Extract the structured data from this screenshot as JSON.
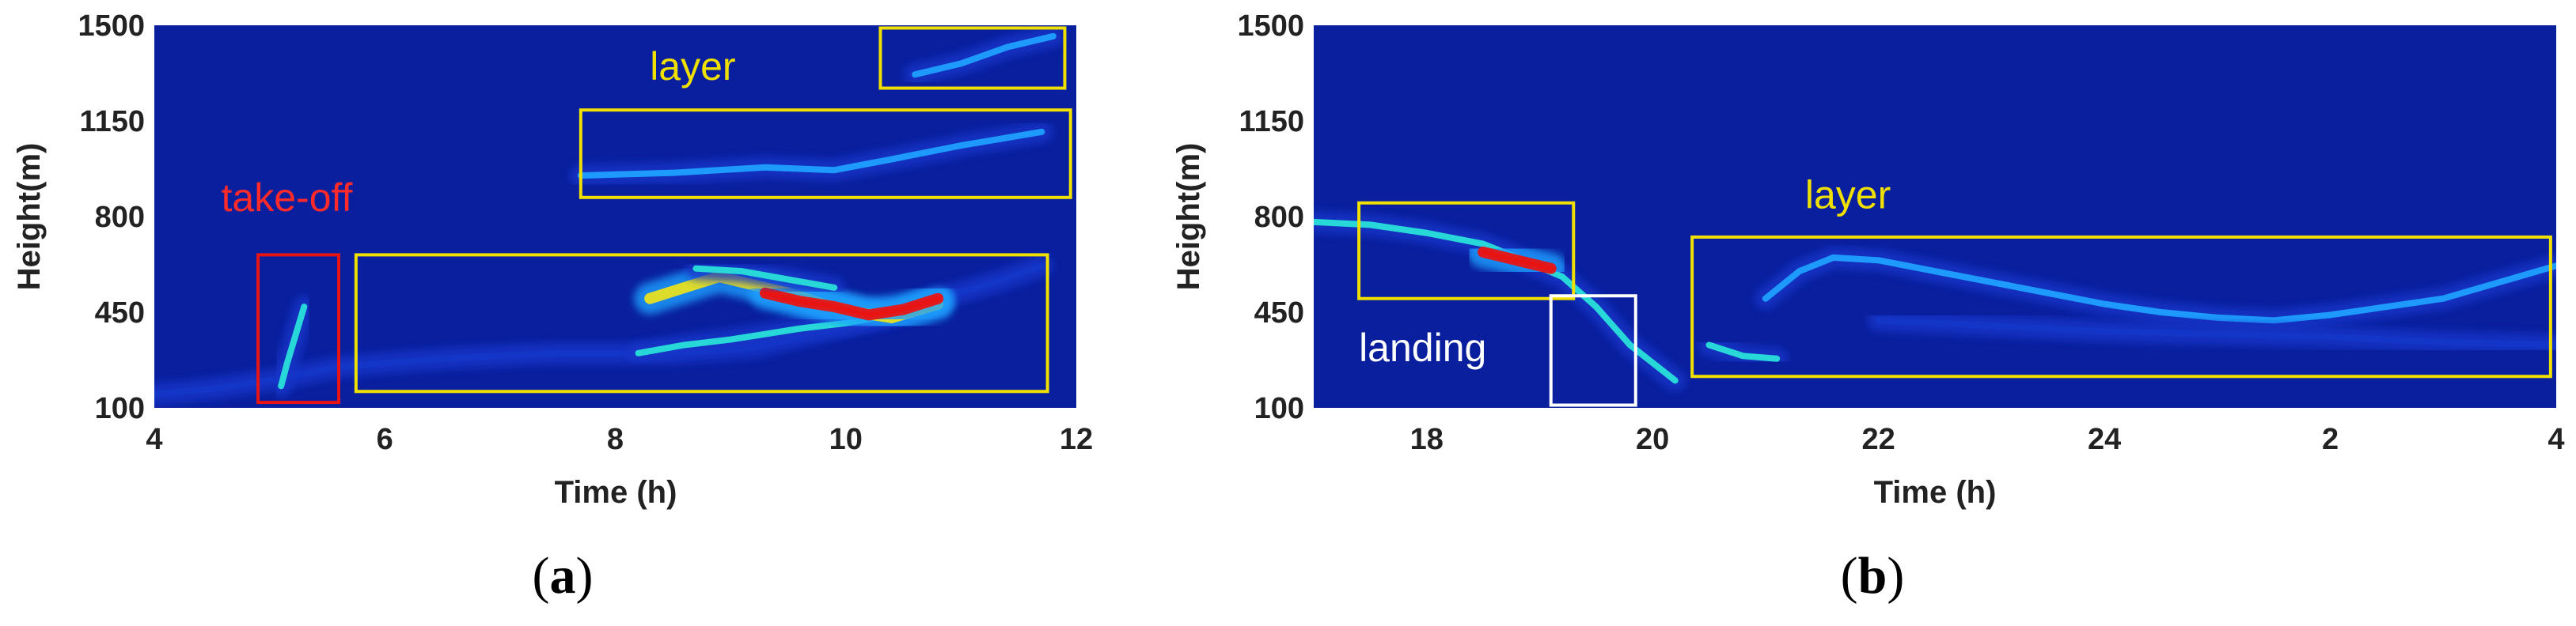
{
  "colors": {
    "background": "#0a1f9e",
    "low": "#1336c8",
    "mid": "#1fa0ff",
    "high_mid": "#29e0d8",
    "high": "#e8e020",
    "peak": "#e81414",
    "box_layer": "#f0e000",
    "box_takeoff": "#e81414",
    "box_landing": "#ffffff",
    "text_takeoff": "#ff2a2a",
    "text_layer": "#f0e000",
    "text_landing": "#ffffff"
  },
  "chart_data": [
    {
      "panel_label": "a",
      "type": "heatmap",
      "xlabel": "Time (h)",
      "ylabel": "Height(m)",
      "x_ticks": [
        4,
        6,
        8,
        10,
        12
      ],
      "x_range": [
        4,
        12
      ],
      "y_ticks": [
        100,
        450,
        800,
        1150,
        1500
      ],
      "y_range": [
        100,
        1500
      ],
      "annotations": [
        {
          "label": "take-off",
          "kind": "takeoff",
          "x_range": [
            4.9,
            5.6
          ],
          "y_range": [
            120,
            660
          ],
          "label_pos": [
            5.15,
            820
          ]
        },
        {
          "label": "layer",
          "kind": "layer",
          "x_range": [
            5.75,
            11.75
          ],
          "y_range": [
            160,
            660
          ],
          "label_pos": null
        },
        {
          "label": "layer",
          "kind": "layer",
          "x_range": [
            7.7,
            11.95
          ],
          "y_range": [
            870,
            1190
          ],
          "label_pos": [
            8.3,
            1300
          ]
        },
        {
          "label": "",
          "kind": "layer",
          "x_range": [
            10.3,
            11.9
          ],
          "y_range": [
            1270,
            1490
          ],
          "label_pos": null
        }
      ],
      "echo_traces": [
        {
          "points": [
            [
              4.0,
              150
            ],
            [
              4.5,
              170
            ],
            [
              5.0,
              200
            ],
            [
              5.6,
              250
            ],
            [
              6.5,
              280
            ],
            [
              7.5,
              300
            ],
            [
              8.5,
              300
            ],
            [
              9.2,
              320
            ],
            [
              9.8,
              380
            ],
            [
              10.3,
              430
            ],
            [
              10.8,
              500
            ],
            [
              11.3,
              560
            ],
            [
              11.7,
              620
            ]
          ],
          "intensity": 0.25
        },
        {
          "points": [
            [
              5.1,
              180
            ],
            [
              5.15,
              260
            ],
            [
              5.2,
              330
            ],
            [
              5.25,
              400
            ],
            [
              5.3,
              470
            ]
          ],
          "intensity": 0.5
        },
        {
          "points": [
            [
              8.2,
              300
            ],
            [
              8.6,
              330
            ],
            [
              9.0,
              350
            ],
            [
              9.3,
              370
            ],
            [
              9.6,
              390
            ],
            [
              10.0,
              410
            ],
            [
              10.4,
              440
            ],
            [
              10.8,
              480
            ]
          ],
          "intensity": 0.5
        },
        {
          "points": [
            [
              8.3,
              500
            ],
            [
              8.6,
              540
            ],
            [
              8.9,
              580
            ],
            [
              9.2,
              550
            ],
            [
              9.5,
              520
            ],
            [
              9.8,
              480
            ],
            [
              10.1,
              450
            ],
            [
              10.4,
              430
            ],
            [
              10.8,
              480
            ]
          ],
          "intensity": 0.75
        },
        {
          "points": [
            [
              9.3,
              520
            ],
            [
              9.6,
              490
            ],
            [
              9.9,
              470
            ],
            [
              10.2,
              440
            ],
            [
              10.5,
              460
            ],
            [
              10.8,
              500
            ]
          ],
          "intensity": 1.0
        },
        {
          "points": [
            [
              8.7,
              610
            ],
            [
              9.1,
              600
            ],
            [
              9.5,
              570
            ],
            [
              9.9,
              540
            ]
          ],
          "intensity": 0.45
        },
        {
          "points": [
            [
              7.7,
              950
            ],
            [
              8.5,
              960
            ],
            [
              9.3,
              980
            ],
            [
              9.9,
              970
            ],
            [
              10.4,
              1010
            ],
            [
              11.0,
              1060
            ],
            [
              11.7,
              1110
            ]
          ],
          "intensity": 0.35
        },
        {
          "points": [
            [
              10.6,
              1320
            ],
            [
              11.0,
              1360
            ],
            [
              11.4,
              1420
            ],
            [
              11.8,
              1460
            ]
          ],
          "intensity": 0.4
        }
      ]
    },
    {
      "panel_label": "b",
      "type": "heatmap",
      "xlabel": "Time (h)",
      "ylabel": "Height(m)",
      "x_ticks": [
        18,
        20,
        22,
        24,
        2,
        4
      ],
      "x_range": [
        17,
        28
      ],
      "y_ticks": [
        100,
        450,
        800,
        1150,
        1500
      ],
      "y_range": [
        100,
        1500
      ],
      "annotations": [
        {
          "label": "",
          "kind": "layer",
          "x_range": [
            17.4,
            19.3
          ],
          "y_range": [
            500,
            850
          ],
          "label_pos": null
        },
        {
          "label": "landing",
          "kind": "landing",
          "x_range": [
            19.1,
            19.85
          ],
          "y_range": [
            110,
            510
          ],
          "label_pos": [
            17.4,
            270
          ]
        },
        {
          "label": "layer",
          "kind": "layer",
          "x_range": [
            20.35,
            27.95
          ],
          "y_range": [
            215,
            725
          ],
          "label_pos": [
            21.35,
            830
          ]
        }
      ],
      "echo_traces": [
        {
          "points": [
            [
              17.0,
              780
            ],
            [
              17.5,
              770
            ],
            [
              18.0,
              740
            ],
            [
              18.5,
              700
            ],
            [
              18.8,
              650
            ],
            [
              19.2,
              580
            ],
            [
              19.5,
              470
            ],
            [
              19.8,
              330
            ],
            [
              20.2,
              200
            ]
          ],
          "intensity": 0.5
        },
        {
          "points": [
            [
              18.5,
              670
            ],
            [
              18.7,
              650
            ],
            [
              18.9,
              630
            ],
            [
              19.1,
              610
            ]
          ],
          "intensity": 1.0
        },
        {
          "points": [
            [
              20.5,
              330
            ],
            [
              20.8,
              290
            ],
            [
              21.1,
              280
            ]
          ],
          "intensity": 0.55
        },
        {
          "points": [
            [
              21.0,
              500
            ],
            [
              21.3,
              600
            ],
            [
              21.6,
              650
            ],
            [
              22.0,
              640
            ],
            [
              22.5,
              600
            ],
            [
              23.0,
              560
            ],
            [
              23.5,
              520
            ],
            [
              24.0,
              480
            ],
            [
              24.5,
              450
            ],
            [
              25.0,
              430
            ],
            [
              25.5,
              420
            ],
            [
              26.0,
              440
            ],
            [
              26.5,
              470
            ],
            [
              27.0,
              500
            ],
            [
              27.5,
              560
            ],
            [
              28.0,
              620
            ]
          ],
          "intensity": 0.3
        },
        {
          "points": [
            [
              22.0,
              420
            ],
            [
              23.0,
              400
            ],
            [
              24.0,
              380
            ],
            [
              25.0,
              370
            ],
            [
              26.0,
              360
            ],
            [
              27.0,
              340
            ],
            [
              28.0,
              330
            ]
          ],
          "intensity": 0.2
        }
      ]
    }
  ]
}
